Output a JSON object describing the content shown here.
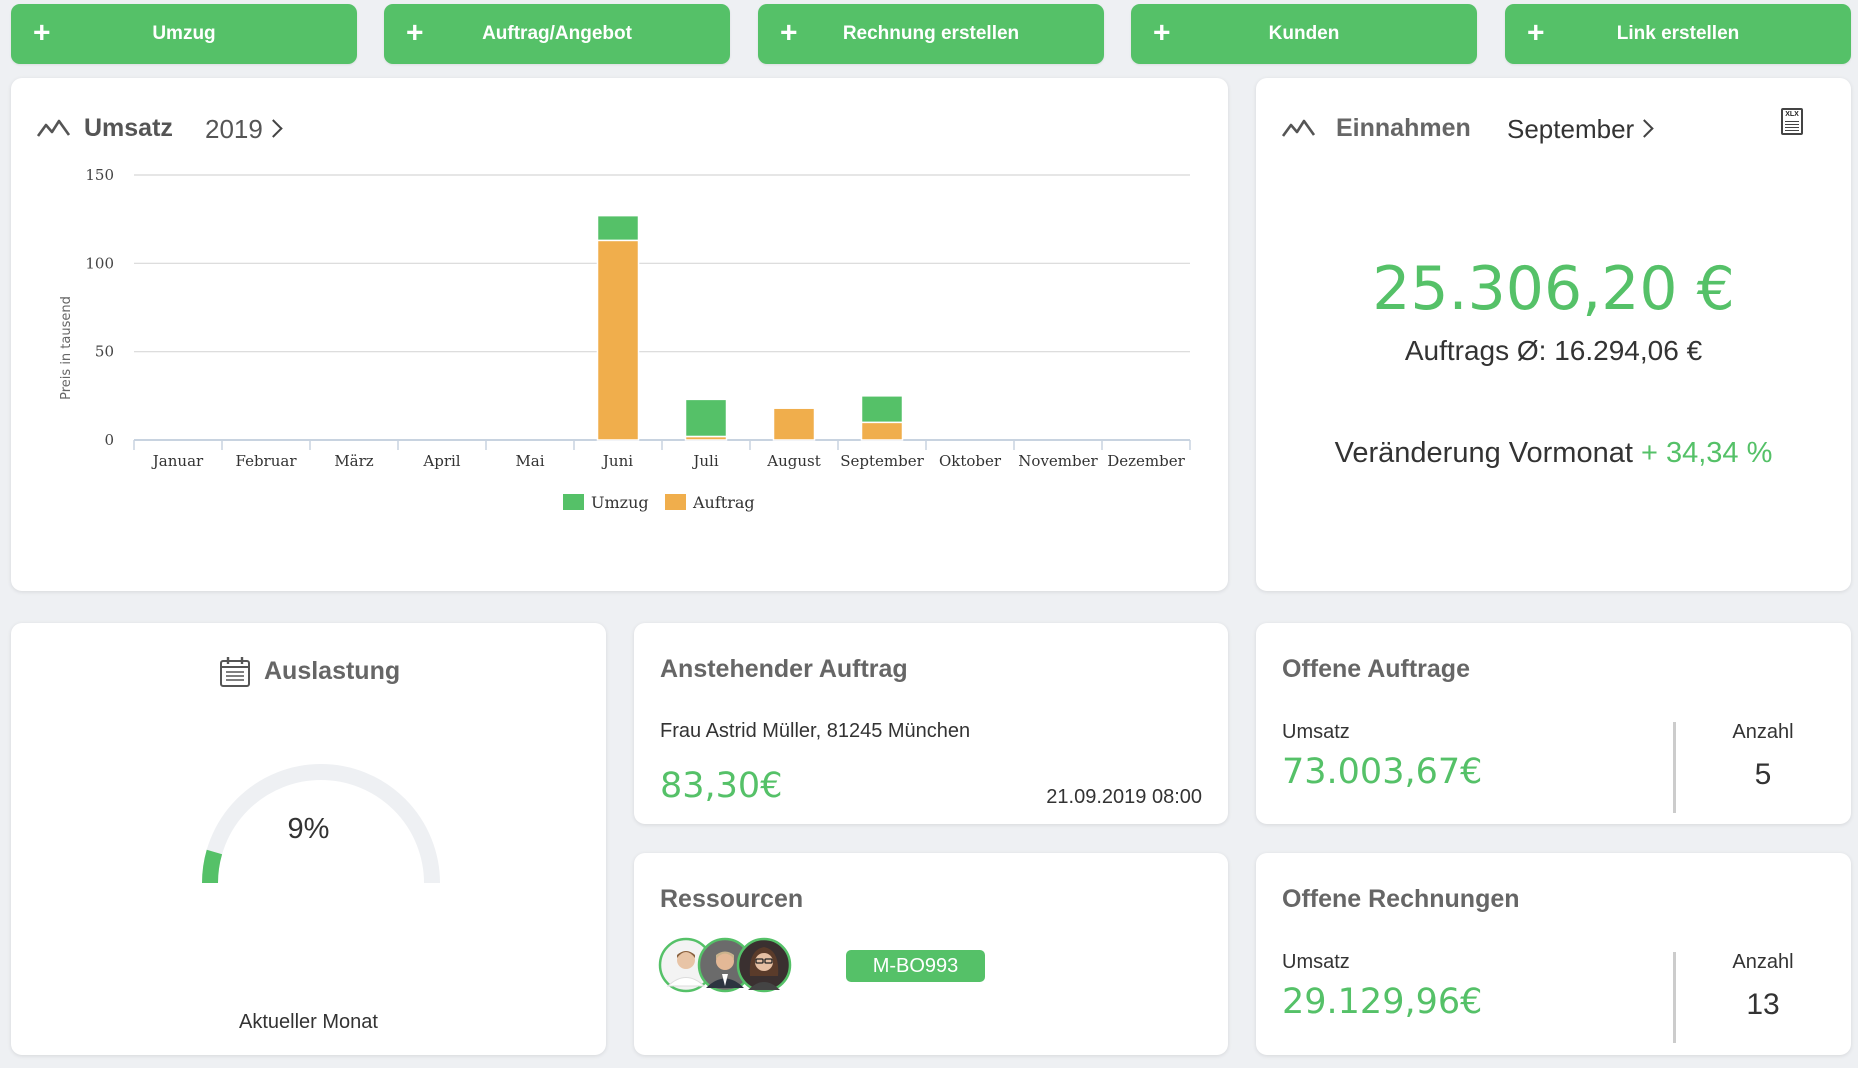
{
  "actions": [
    {
      "label": "Umzug"
    },
    {
      "label": "Auftrag/Angebot"
    },
    {
      "label": "Rechnung erstellen"
    },
    {
      "label": "Kunden"
    },
    {
      "label": "Link erstellen"
    }
  ],
  "plus_glyph": "+",
  "umsatz": {
    "title": "Umsatz",
    "year": "2019",
    "chart_data": {
      "type": "bar",
      "stacked": true,
      "categories": [
        "Januar",
        "Februar",
        "März",
        "April",
        "Mai",
        "Juni",
        "Juli",
        "August",
        "September",
        "Oktober",
        "November",
        "Dezember"
      ],
      "series": [
        {
          "name": "Auftrag",
          "color": "#f0ae4c",
          "values": [
            0,
            0,
            0,
            0,
            0,
            113,
            2,
            18,
            10,
            0,
            0,
            0
          ]
        },
        {
          "name": "Umzug",
          "color": "#55c168",
          "values": [
            0,
            0,
            0,
            0,
            0,
            14,
            21,
            0,
            15,
            0,
            0,
            0
          ]
        }
      ],
      "legend": [
        {
          "name": "Umzug",
          "color": "#55c168"
        },
        {
          "name": "Auftrag",
          "color": "#f0ae4c"
        }
      ],
      "ylabel": "Preis in tausend",
      "yticks": [
        "0",
        "50",
        "100",
        "150"
      ],
      "ylim": [
        0,
        150
      ],
      "grid": true,
      "legend_position": "bottom-center"
    }
  },
  "einnahmen": {
    "title": "Einnahmen",
    "month": "September",
    "xlx_label": "XLX",
    "amount": "25.306,20 €",
    "avg": "Auftrags Ø: 16.294,06 €",
    "change_label": "Veränderung Vormonat",
    "change_value": "+ 34,34 %"
  },
  "auslastung": {
    "title": "Auslastung",
    "percent": "9%",
    "value": 0.09,
    "footer": "Aktueller Monat"
  },
  "anstehender": {
    "title": "Anstehender Auftrag",
    "customer": "Frau Astrid Müller, 81245 München",
    "amount": "83,30€",
    "datetime": "21.09.2019 08:00"
  },
  "ressourcen": {
    "title": "Ressourcen",
    "vehicle": "M-BO993"
  },
  "offene_auftraege": {
    "title": "Offene Auftrage",
    "umsatz_label": "Umsatz",
    "umsatz": "73.003,67€",
    "anzahl_label": "Anzahl",
    "anzahl": "5"
  },
  "offene_rechnungen": {
    "title": "Offene Rechnungen",
    "umsatz_label": "Umsatz",
    "umsatz": "29.129,96€",
    "anzahl_label": "Anzahl",
    "anzahl": "13"
  },
  "colors": {
    "accent": "#55c168",
    "auftrag": "#f0ae4c",
    "background": "#eef0f3"
  }
}
